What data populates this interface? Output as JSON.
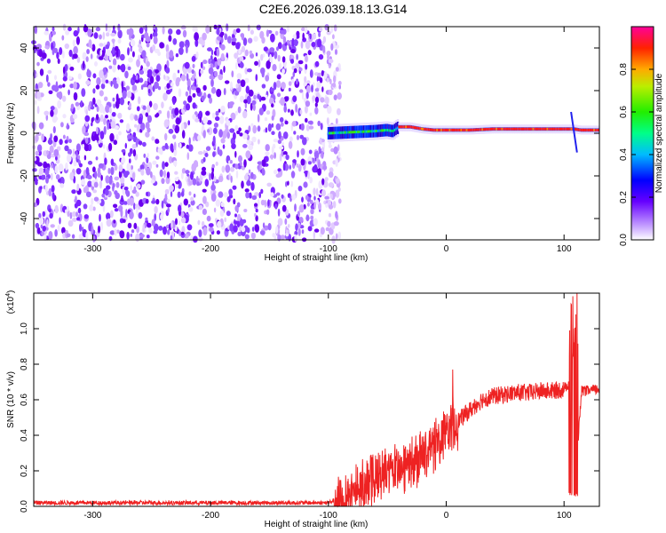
{
  "title": "C2E6.2026.039.18.13.G14",
  "colors": {
    "snr_line": "#ee2222",
    "background": "#ffffff",
    "axis": "#000000"
  },
  "chart_data": [
    {
      "type": "heatmap",
      "name": "spectrogram",
      "xlabel": "Height of straight line (km)",
      "ylabel": "Frequency (Hz)",
      "xlim": [
        -350,
        130
      ],
      "ylim": [
        -50,
        50
      ],
      "x_ticks": [
        -300,
        -200,
        -100,
        0,
        100
      ],
      "y_ticks": [
        -40,
        -20,
        0,
        20,
        40
      ],
      "grid": false,
      "noise_region_x": [
        -350,
        -90
      ],
      "signal_track": {
        "x": [
          -100,
          -80,
          -60,
          -50,
          -45,
          -40,
          -30,
          -20,
          -10,
          0,
          20,
          40,
          60,
          80,
          100,
          108,
          115,
          130
        ],
        "freq_hz": [
          0,
          0.5,
          1,
          1.5,
          1,
          3,
          3,
          2,
          1.5,
          1.5,
          1.5,
          2,
          2,
          2,
          2,
          2,
          1.5,
          1.5
        ]
      },
      "colorbar": {
        "label": "Normalized spectral amplitude",
        "range": [
          0.0,
          1.0
        ],
        "ticks": [
          0.0,
          0.2,
          0.4,
          0.6,
          0.8
        ],
        "tick_labels": [
          "0.0",
          "0.2",
          "0.4",
          "0.6",
          "0.8"
        ]
      }
    },
    {
      "type": "line",
      "name": "snr",
      "xlabel": "Height of straight line (km)",
      "ylabel": "SNR (10 * v/v)",
      "scale_label": "(x10",
      "scale_exponent": "4",
      "xlim": [
        -350,
        130
      ],
      "ylim": [
        0,
        1.2
      ],
      "x_ticks": [
        -300,
        -200,
        -100,
        0,
        100
      ],
      "y_ticks": [
        0.0,
        0.2,
        0.4,
        0.6,
        0.8,
        1.0
      ],
      "y_tick_labels": [
        "0.0",
        "0.2",
        "0.4",
        "0.6",
        "0.8",
        "1.0"
      ],
      "grid": false,
      "series": [
        {
          "name": "SNR",
          "x": [
            -350,
            -100,
            -90,
            -80,
            -70,
            -60,
            -50,
            -40,
            -30,
            -20,
            -10,
            0,
            10,
            20,
            30,
            40,
            50,
            60,
            70,
            80,
            90,
            100,
            105,
            108,
            110,
            115,
            120,
            130
          ],
          "y": [
            0.02,
            0.02,
            0.05,
            0.08,
            0.12,
            0.15,
            0.18,
            0.2,
            0.24,
            0.28,
            0.34,
            0.42,
            0.48,
            0.54,
            0.6,
            0.62,
            0.63,
            0.64,
            0.64,
            0.65,
            0.65,
            0.66,
            0.7,
            0.9,
            0.2,
            0.65,
            0.65,
            0.66
          ]
        }
      ]
    }
  ]
}
